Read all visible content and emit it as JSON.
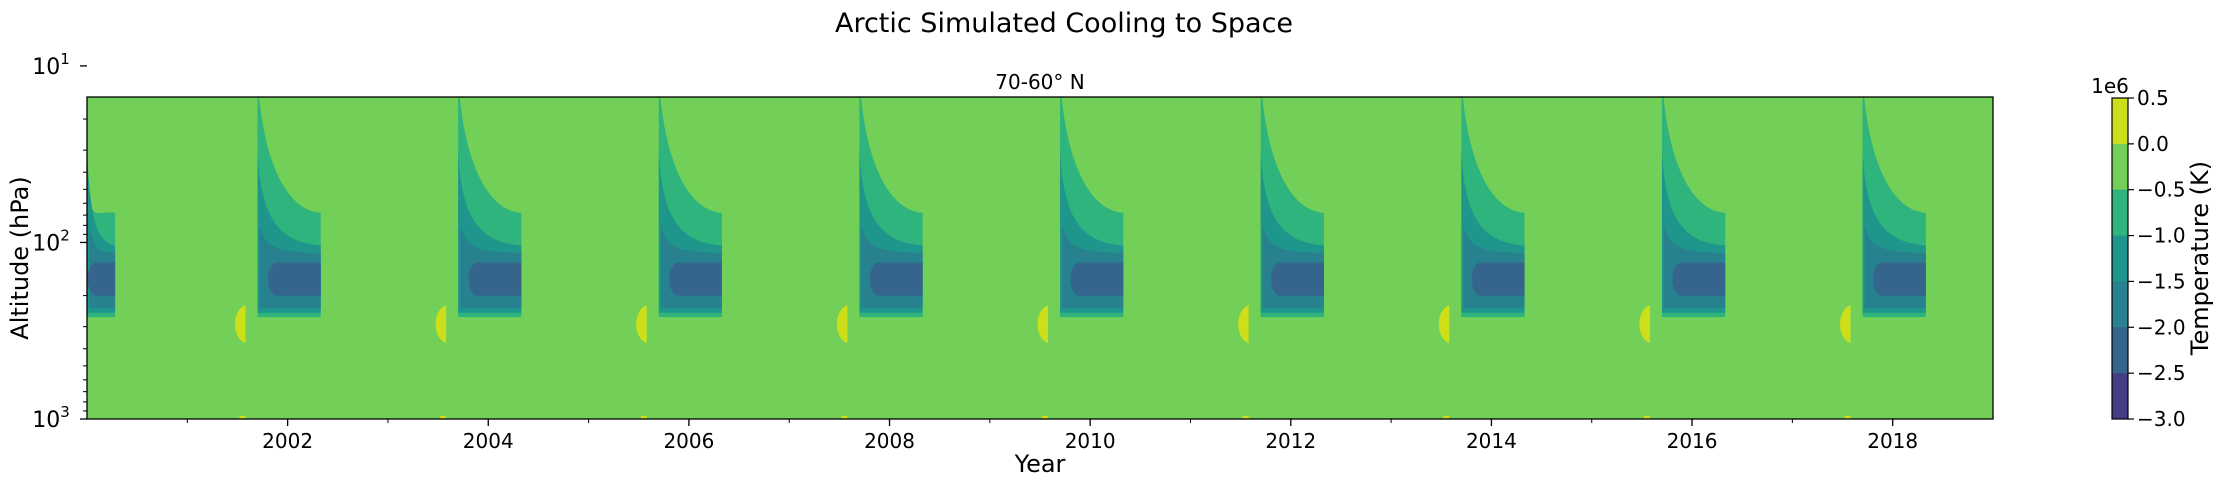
{
  "figure": {
    "title": "Arctic Simulated Cooling to Space"
  },
  "chart_data": {
    "type": "contourf",
    "title": "70-60° N",
    "xlabel": "Year",
    "ylabel": "Altitude (hPa)",
    "xlim": [
      2000.0,
      2019.0
    ],
    "ylim_hPa": [
      1000,
      15
    ],
    "y_scale": "log",
    "y_inverted": true,
    "x_ticks": [
      "2002",
      "2004",
      "2006",
      "2008",
      "2010",
      "2012",
      "2014",
      "2016",
      "2018"
    ],
    "y_ticks": [
      {
        "base": "10",
        "exp": "1",
        "value": 10
      },
      {
        "base": "10",
        "exp": "2",
        "value": 100
      },
      {
        "base": "10",
        "exp": "3",
        "value": 1000
      }
    ],
    "background_level": "-0.5 to 0.0",
    "season_events": {
      "years": [
        2001.6,
        2003.6,
        2005.6,
        2007.6,
        2009.6,
        2011.6,
        2013.6,
        2015.6,
        2017.6
      ],
      "first_partial_end": 2000.28,
      "onset_offset_yr": 0.1,
      "end_offset_yr": 0.73,
      "top_pressure_hPa": 11,
      "base_pressure_hPa": 265,
      "min_band_hPa": [
        130,
        200
      ],
      "min_level": "-2.5 to -2.0"
    },
    "colorbar": {
      "label": "Temperature (K)",
      "multiplier": "1e6",
      "levels": [
        "0.5",
        "0.0",
        "−0.5",
        "−1.0",
        "−1.5",
        "−2.0",
        "−2.5",
        "−3.0"
      ],
      "colors": [
        "#cddf1b",
        "#72cf58",
        "#2eb47c",
        "#1f968b",
        "#27818e",
        "#35648d",
        "#433e85",
        "#471b6e"
      ]
    }
  }
}
